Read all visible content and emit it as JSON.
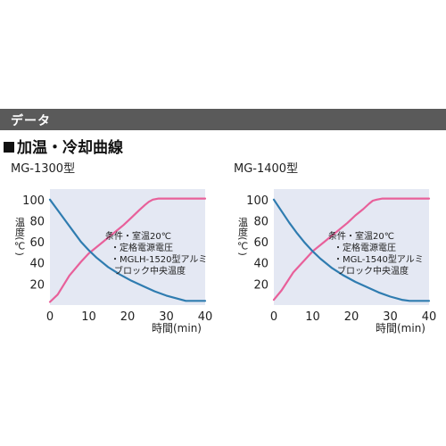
{
  "section": {
    "title": "データ"
  },
  "heading": "加温・冷却曲線",
  "colors": {
    "heating": "#e8609a",
    "cooling": "#2f7cb0",
    "plot_bg": "#e4e8f3",
    "bar": "#5a5a5a"
  },
  "chart_data": [
    {
      "type": "line",
      "title": "MG-1300型",
      "xlabel": "時間(min)",
      "ylabel": "温度(℃)",
      "xlim": [
        0,
        40
      ],
      "ylim": [
        0,
        110
      ],
      "xticks": [
        "0",
        "10",
        "20",
        "30",
        "40"
      ],
      "yticks": [
        "20",
        "40",
        "60",
        "80",
        "100"
      ],
      "grid": false,
      "annotation": [
        "条件・室温20℃",
        "・定格電源電圧",
        "・MGLH-1520型アルミ",
        "ブロック中央温度"
      ],
      "series": [
        {
          "color": "#e8609a",
          "x": [
            0,
            2,
            5,
            8,
            10,
            13,
            16,
            19,
            21,
            23,
            24.5,
            25.5,
            26.5,
            28,
            31,
            35,
            40
          ],
          "y": [
            3,
            10,
            28,
            41,
            49,
            58,
            67,
            76,
            83,
            90,
            95,
            98,
            100,
            101,
            101,
            101,
            101
          ]
        },
        {
          "color": "#2f7cb0",
          "x": [
            0,
            2,
            4,
            6,
            8,
            10,
            12,
            15,
            18,
            21,
            24,
            27,
            30,
            33,
            35,
            37,
            40
          ],
          "y": [
            100,
            90,
            80,
            70,
            60,
            52,
            45,
            36,
            29,
            23,
            18,
            13,
            9,
            6,
            4,
            4,
            4
          ]
        }
      ]
    },
    {
      "type": "line",
      "title": "MG-1400型",
      "xlabel": "時間(min)",
      "ylabel": "温度(℃)",
      "xlim": [
        0,
        40
      ],
      "ylim": [
        0,
        110
      ],
      "xticks": [
        "0",
        "10",
        "20",
        "30",
        "40"
      ],
      "yticks": [
        "20",
        "40",
        "60",
        "80",
        "100"
      ],
      "grid": false,
      "annotation": [
        "条件・室温20℃",
        "・定格電源電圧",
        "・MGL-1540型アルミ",
        "ブロック中央温度"
      ],
      "series": [
        {
          "color": "#e8609a",
          "x": [
            0,
            2,
            5,
            8,
            10,
            13,
            16,
            19,
            21,
            23,
            24.5,
            25.5,
            26.5,
            28,
            31,
            35,
            40
          ],
          "y": [
            5,
            14,
            31,
            43,
            51,
            60,
            69,
            78,
            85,
            91,
            96,
            99,
            100,
            101,
            101,
            101,
            101
          ]
        },
        {
          "color": "#2f7cb0",
          "x": [
            0,
            2,
            4,
            6,
            8,
            10,
            12,
            15,
            18,
            21,
            24,
            27,
            30,
            33,
            35,
            37,
            40
          ],
          "y": [
            100,
            89,
            78,
            68,
            59,
            51,
            44,
            35,
            28,
            22,
            17,
            12,
            8,
            5,
            4,
            4,
            4
          ]
        }
      ]
    }
  ]
}
